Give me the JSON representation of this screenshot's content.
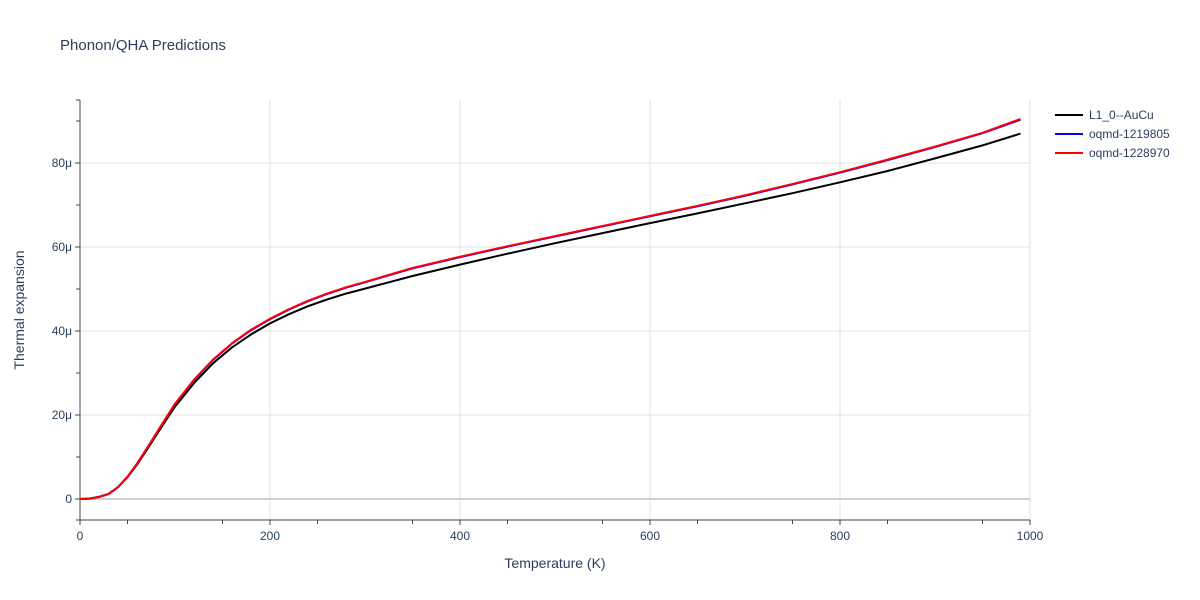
{
  "chart_data": {
    "type": "line",
    "title": "Phonon/QHA Predictions",
    "xlabel": "Temperature (K)",
    "ylabel": "Thermal expansion",
    "xlim": [
      0,
      1000
    ],
    "ylim": [
      -5,
      95
    ],
    "y_unit_suffix": "μ",
    "x_ticks": [
      0,
      200,
      400,
      600,
      800,
      1000
    ],
    "x_tick_labels": [
      "0",
      "200",
      "400",
      "600",
      "800",
      "1000"
    ],
    "y_ticks": [
      0,
      20,
      40,
      60,
      80
    ],
    "y_tick_labels": [
      "0",
      "20μ",
      "40μ",
      "60μ",
      "80μ"
    ],
    "grid": true,
    "legend_position": "top-right",
    "series": [
      {
        "name": "L1_0--AuCu",
        "color": "#000000",
        "x": [
          0,
          10,
          20,
          30,
          40,
          50,
          60,
          70,
          80,
          90,
          100,
          120,
          140,
          160,
          180,
          200,
          220,
          240,
          260,
          280,
          300,
          350,
          400,
          450,
          500,
          550,
          600,
          650,
          700,
          750,
          800,
          850,
          900,
          950,
          990
        ],
        "y": [
          0,
          0.1,
          0.5,
          1.2,
          2.8,
          5.2,
          8.2,
          11.6,
          15.1,
          18.6,
          22.0,
          27.6,
          32.3,
          36.1,
          39.2,
          41.8,
          44.0,
          45.9,
          47.5,
          48.9,
          50.1,
          53.1,
          55.8,
          58.4,
          60.9,
          63.3,
          65.7,
          68.0,
          70.4,
          72.8,
          75.4,
          78.1,
          81.1,
          84.2,
          87.0
        ]
      },
      {
        "name": "oqmd-1219805",
        "color": "#0000ff",
        "x": [
          0,
          10,
          20,
          30,
          40,
          50,
          60,
          70,
          80,
          90,
          100,
          120,
          140,
          160,
          180,
          200,
          220,
          240,
          260,
          280,
          300,
          350,
          400,
          450,
          500,
          550,
          600,
          650,
          700,
          750,
          800,
          850,
          900,
          950,
          990
        ],
        "y": [
          0,
          0.1,
          0.5,
          1.2,
          2.8,
          5.3,
          8.4,
          11.9,
          15.5,
          19.1,
          22.6,
          28.3,
          33.1,
          37.0,
          40.2,
          42.8,
          45.1,
          47.1,
          48.8,
          50.3,
          51.6,
          54.9,
          57.6,
          60.1,
          62.5,
          64.9,
          67.3,
          69.7,
          72.2,
          74.9,
          77.7,
          80.7,
          83.8,
          87.1,
          90.3
        ]
      },
      {
        "name": "oqmd-1228970",
        "color": "#ff0000",
        "x": [
          0,
          10,
          20,
          30,
          40,
          50,
          60,
          70,
          80,
          90,
          100,
          120,
          140,
          160,
          180,
          200,
          220,
          240,
          260,
          280,
          300,
          350,
          400,
          450,
          500,
          550,
          600,
          650,
          700,
          750,
          800,
          850,
          900,
          950,
          990
        ],
        "y": [
          0,
          0.1,
          0.5,
          1.2,
          2.8,
          5.3,
          8.4,
          11.9,
          15.5,
          19.1,
          22.7,
          28.4,
          33.2,
          37.1,
          40.3,
          42.9,
          45.2,
          47.2,
          48.9,
          50.4,
          51.7,
          55.0,
          57.7,
          60.2,
          62.6,
          65.0,
          67.4,
          69.8,
          72.3,
          75.0,
          77.8,
          80.8,
          83.9,
          87.2,
          90.5
        ]
      }
    ]
  }
}
